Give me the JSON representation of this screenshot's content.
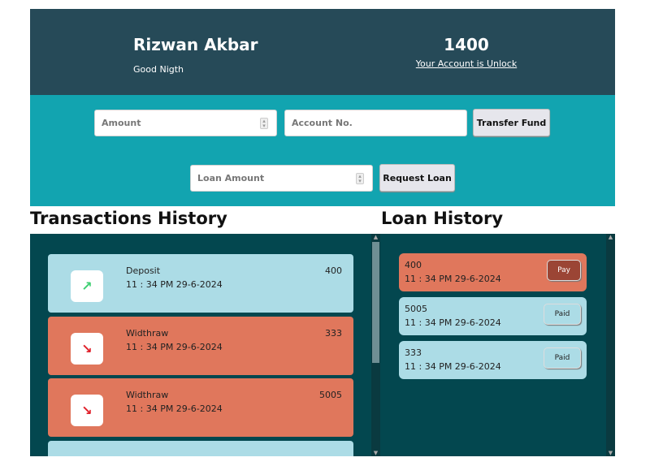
{
  "header": {
    "name": "Rizwan Akbar",
    "greeting": "Good Nigth",
    "balance": "1400",
    "account_status": "Your Account is Unlock"
  },
  "transfer": {
    "amount_placeholder": "Amount",
    "account_placeholder": "Account No.",
    "button": "Transfer Fund"
  },
  "loan_request": {
    "amount_placeholder": "Loan Amount",
    "button": "Request Loan"
  },
  "transactions": {
    "title": "Transactions History",
    "items": [
      {
        "type": "Deposit",
        "date": "11 : 34 PM 29-6-2024",
        "amount": "400",
        "icon": "trending-up-icon"
      },
      {
        "type": "Widthraw",
        "date": "11 : 34 PM 29-6-2024",
        "amount": "333",
        "icon": "trending-down-icon"
      },
      {
        "type": "Widthraw",
        "date": "11 : 34 PM 29-6-2024",
        "amount": "5005",
        "icon": "trending-down-icon"
      }
    ]
  },
  "loans": {
    "title": "Loan History",
    "items": [
      {
        "amount": "400",
        "date": "11 : 34 PM 29-6-2024",
        "button": "Pay"
      },
      {
        "amount": "5005",
        "date": "11 : 34 PM 29-6-2024",
        "button": "Paid"
      },
      {
        "amount": "333",
        "date": "11 : 34 PM 29-6-2024",
        "button": "Paid"
      }
    ]
  },
  "colors": {
    "header": "#264a58",
    "band": "#12a4b0",
    "panel": "#03474f",
    "deposit": "#acdce6",
    "withdraw": "#e0775c",
    "pay_button": "#9b4535"
  }
}
